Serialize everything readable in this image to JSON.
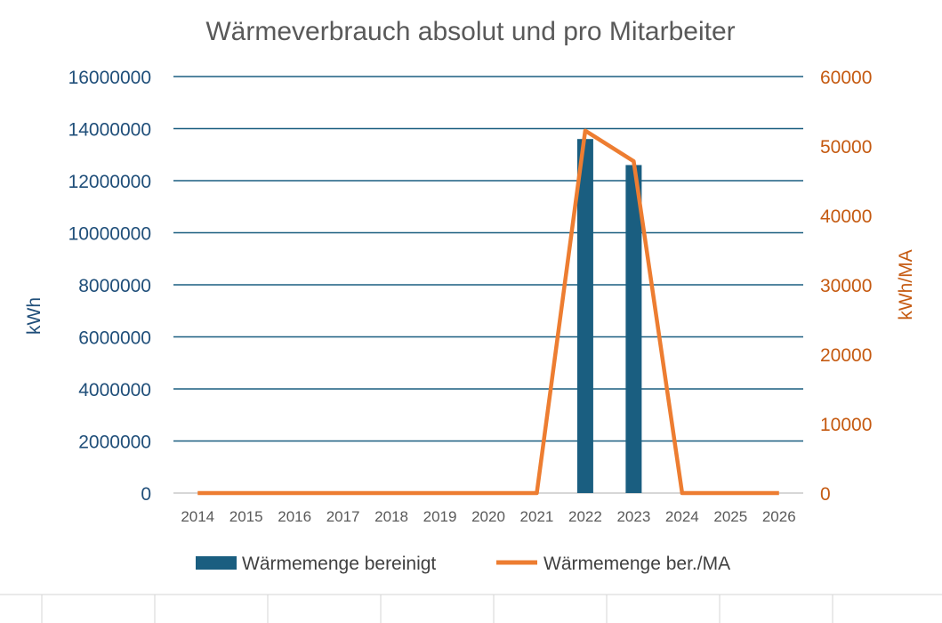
{
  "chart_data": {
    "type": "bar",
    "title": "Wärmeverbrauch absolut und pro Mitarbeiter",
    "categories": [
      "2014",
      "2015",
      "2016",
      "2017",
      "2018",
      "2019",
      "2020",
      "2021",
      "2022",
      "2023",
      "2024",
      "2025",
      "2026"
    ],
    "y_left": {
      "label": "kWh",
      "range": [
        0,
        16000000
      ],
      "ticks": [
        "0",
        "2000000",
        "4000000",
        "6000000",
        "8000000",
        "10000000",
        "12000000",
        "14000000",
        "16000000"
      ]
    },
    "y_right": {
      "label": "kWh/MA",
      "range": [
        0,
        60000
      ],
      "ticks": [
        "0",
        "10000",
        "20000",
        "30000",
        "40000",
        "50000",
        "60000"
      ]
    },
    "grid": true,
    "legend_position": "bottom",
    "series": [
      {
        "name": "Wärmemenge bereinigt",
        "type": "bar",
        "axis": "left",
        "color": "#1a5e80",
        "values": [
          0,
          0,
          0,
          0,
          0,
          0,
          0,
          0,
          13600000,
          12600000,
          0,
          0,
          0
        ]
      },
      {
        "name": "Wärmemenge ber./MA",
        "type": "line",
        "axis": "right",
        "color": "#ed7d31",
        "values": [
          0,
          0,
          0,
          0,
          0,
          0,
          0,
          0,
          52200,
          47800,
          0,
          0,
          0
        ]
      }
    ],
    "colors": {
      "left_axis_text": "#1f4e79",
      "right_axis_text": "#c55a11",
      "grid": "#1a5e80",
      "x_text": "#595959"
    }
  }
}
